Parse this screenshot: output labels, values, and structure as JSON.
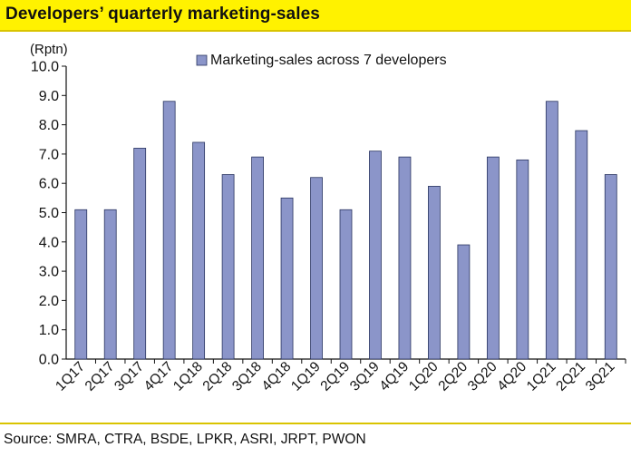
{
  "header": {
    "title": "Developers’ quarterly marketing-sales"
  },
  "footer": {
    "source": "Source: SMRA, CTRA, BSDE, LPKR, ASRI, JRPT, PWON"
  },
  "colors": {
    "title_bg": "#fff200",
    "bar_fill": "#8b95c9",
    "bar_stroke": "#2a3560",
    "rule": "#d9c400"
  },
  "chart_data": {
    "type": "bar",
    "unit_label": "(Rptn)",
    "categories": [
      "1Q17",
      "2Q17",
      "3Q17",
      "4Q17",
      "1Q18",
      "2Q18",
      "3Q18",
      "4Q18",
      "1Q19",
      "2Q19",
      "3Q19",
      "4Q19",
      "1Q20",
      "2Q20",
      "3Q20",
      "4Q20",
      "1Q21",
      "2Q21",
      "3Q21"
    ],
    "series": [
      {
        "name": "Marketing-sales across 7 developers",
        "values": [
          5.1,
          5.1,
          7.2,
          8.8,
          7.4,
          6.3,
          6.9,
          5.5,
          6.2,
          5.1,
          7.1,
          6.9,
          5.9,
          3.9,
          6.9,
          6.8,
          8.8,
          7.8,
          6.3
        ]
      }
    ],
    "ylim": [
      0,
      10
    ],
    "yticks": [
      "0.0",
      "1.0",
      "2.0",
      "3.0",
      "4.0",
      "5.0",
      "6.0",
      "7.0",
      "8.0",
      "9.0",
      "10.0"
    ],
    "legend": "top-center",
    "grid": false
  }
}
